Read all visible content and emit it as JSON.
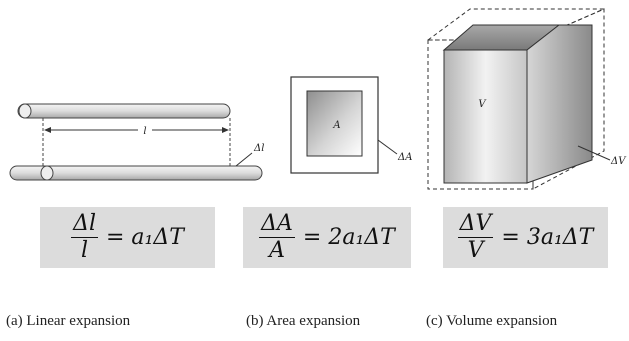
{
  "linear": {
    "rod_length_label": "l",
    "delta_label": "Δl",
    "formula": {
      "numerator": "Δl",
      "denominator": "l",
      "rhs": "= a₁ΔT"
    },
    "caption": "(a) Linear expansion"
  },
  "area": {
    "inner_label": "A",
    "delta_label": "ΔA",
    "formula": {
      "numerator": "ΔA",
      "denominator": "A",
      "rhs": "= 2a₁ΔT"
    },
    "caption": "(b) Area expansion"
  },
  "volume": {
    "cube_label": "V",
    "delta_label": "ΔV",
    "formula": {
      "numerator": "ΔV",
      "denominator": "V",
      "rhs": "= 3a₁ΔT"
    },
    "caption": "(c) Volume expansion"
  }
}
